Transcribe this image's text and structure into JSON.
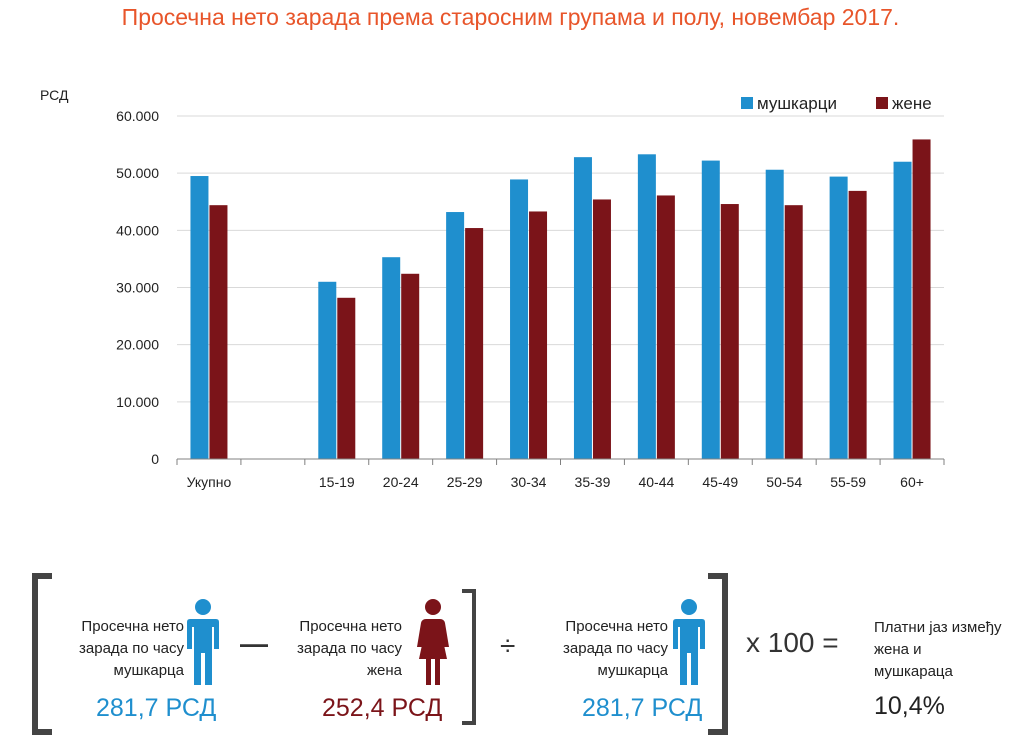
{
  "title": "Просечна нето зарада према старосним групама и полу, новембар 2017.",
  "colors": {
    "men": "#1f8fce",
    "women": "#7b1419",
    "title": "#e8552a"
  },
  "chart_data": {
    "type": "bar",
    "yunit": "РСД",
    "categories": [
      "Укупно",
      "",
      "15-19",
      "20-24",
      "25-29",
      "30-34",
      "35-39",
      "40-44",
      "45-49",
      "50-54",
      "55-59",
      "60+"
    ],
    "series": [
      {
        "name": "мушкарци",
        "values": [
          49500,
          null,
          31000,
          35300,
          43200,
          48900,
          52800,
          53300,
          52200,
          50600,
          49400,
          52000
        ]
      },
      {
        "name": "жене",
        "values": [
          44400,
          null,
          28200,
          32400,
          40400,
          43300,
          45400,
          46100,
          44600,
          44400,
          46900,
          55900
        ]
      }
    ],
    "yticks": [
      "0",
      "10.000",
      "20.000",
      "30.000",
      "40.000",
      "50.000",
      "60.000"
    ],
    "ylim": [
      0,
      60000
    ],
    "grid": true,
    "legend": "top-right"
  },
  "formula": {
    "men_label": "Просечна нето зарада по часу мушкарца",
    "men_value": "281,7 РСД",
    "women_label": "Просечна нето зарада по часу жена",
    "women_value": "252,4 РСД",
    "divisor_label": "Просечна нето зарада по часу мушкарца",
    "divisor_value": "281,7 РСД",
    "minus": "—",
    "divide": "÷",
    "times": "x 100 =",
    "result_label": "Платни јаз између жена и мушкараца",
    "result_value": "10,4%"
  }
}
